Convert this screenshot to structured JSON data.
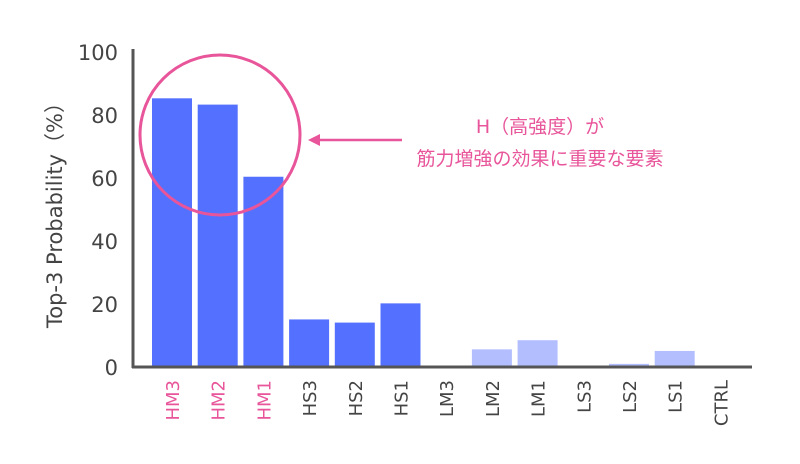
{
  "chart_data": {
    "type": "bar",
    "title": "",
    "xlabel": "",
    "ylabel": "Top-3 Probability（%）",
    "ylim": [
      0,
      100
    ],
    "yticks": [
      0,
      20,
      40,
      60,
      80,
      100
    ],
    "grid": false,
    "categories": [
      "HM3",
      "HM2",
      "HM1",
      "HS3",
      "HS2",
      "HS1",
      "LM3",
      "LM2",
      "LM1",
      "LS3",
      "LS2",
      "LS1",
      "CTRL"
    ],
    "values": [
      85.3,
      83.3,
      60.4,
      15.1,
      14.1,
      20.2,
      0,
      5.6,
      8.5,
      0,
      1.0,
      5.1,
      0
    ],
    "bar_colors": [
      "#5470FF",
      "#5470FF",
      "#5470FF",
      "#5470FF",
      "#5470FF",
      "#5470FF",
      "#B3BEFF",
      "#B3BEFF",
      "#B3BEFF",
      "#B3BEFF",
      "#B3BEFF",
      "#B3BEFF",
      "#B3BEFF"
    ],
    "highlighted_categories": [
      "HM3",
      "HM2",
      "HM1"
    ],
    "highlight_color": "#E8559A",
    "annotation": {
      "line1": "H（高強度）が",
      "line2": "筋力増強の効果に重要な要素"
    }
  }
}
